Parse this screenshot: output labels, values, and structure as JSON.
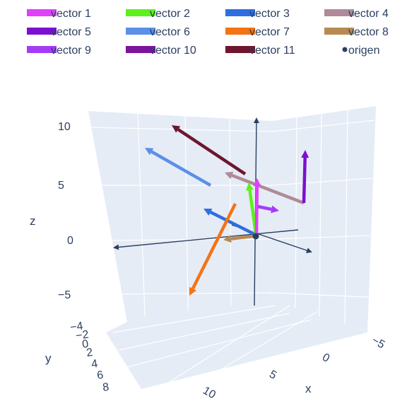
{
  "chart_data": {
    "type": "scatter3d-vectors",
    "legend": [
      {
        "name": "vector 1",
        "color": "#e040fb"
      },
      {
        "name": "vector 2",
        "color": "#5ef01c"
      },
      {
        "name": "vector 3",
        "color": "#2f6ee0"
      },
      {
        "name": "vector 4",
        "color": "#b08a98"
      },
      {
        "name": "vector 5",
        "color": "#7b10d0"
      },
      {
        "name": "vector 6",
        "color": "#5b8fe8"
      },
      {
        "name": "vector 7",
        "color": "#f57314"
      },
      {
        "name": "vector 8",
        "color": "#b88a52"
      },
      {
        "name": "vector 9",
        "color": "#a53cf5"
      },
      {
        "name": "vector 10",
        "color": "#7c149c"
      },
      {
        "name": "vector 11",
        "color": "#6e1630"
      },
      {
        "name": "origen",
        "color": "#2a3f5f",
        "marker": true
      }
    ],
    "axes": {
      "z": {
        "title": "z",
        "ticks": [
          "10",
          "5",
          "0",
          "−5"
        ]
      },
      "y": {
        "title": "y",
        "ticks": [
          "−4",
          "−2",
          "0",
          "2",
          "4",
          "6",
          "8"
        ]
      },
      "x": {
        "title": "x",
        "ticks": [
          "−5",
          "0",
          "5",
          "10"
        ]
      }
    }
  }
}
